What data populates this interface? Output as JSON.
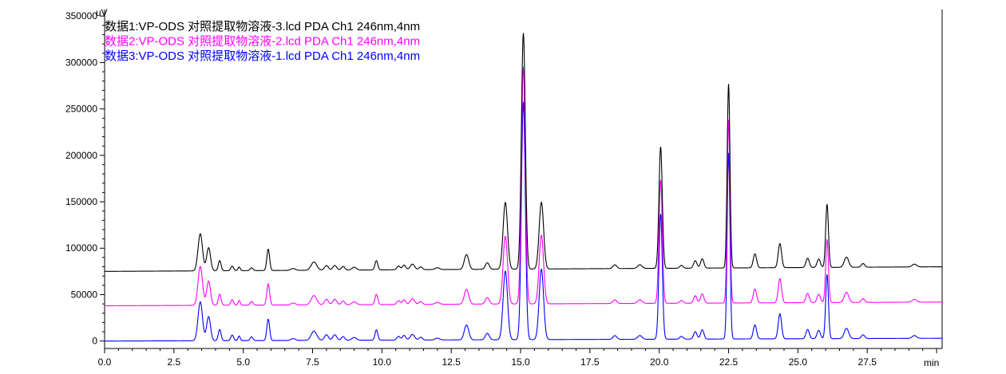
{
  "chart_data": {
    "type": "line",
    "ylabel": "uV",
    "xlabel": "min",
    "xlim": [
      0,
      30.2
    ],
    "ylim": [
      -8000,
      357000
    ],
    "x_ticks": [
      0.0,
      2.5,
      5.0,
      7.5,
      10.0,
      12.5,
      15.0,
      17.5,
      20.0,
      22.5,
      25.0,
      27.5
    ],
    "x_tick_labels": [
      "0.0",
      "2.5",
      "5.0",
      "7.5",
      "10.0",
      "12.5",
      "15.0",
      "17.5",
      "20.0",
      "22.5",
      "25.0",
      "27.5"
    ],
    "y_ticks": [
      0,
      50000,
      100000,
      150000,
      200000,
      250000,
      300000,
      350000
    ],
    "y_tick_labels": [
      "0",
      "50000",
      "100000",
      "150000",
      "200000",
      "250000",
      "300000",
      "350000"
    ],
    "legend_position": "top-left",
    "series": [
      {
        "name": "数据1:VP-ODS 对照提取物溶液-3.lcd PDA Ch1 246nm,4nm",
        "color": "#000000",
        "baseline_start": 75000,
        "baseline_end": 80000,
        "peaks": [
          {
            "t": 3.45,
            "h": 40000,
            "w": 0.08
          },
          {
            "t": 3.75,
            "h": 25000,
            "w": 0.07
          },
          {
            "t": 4.15,
            "h": 11000,
            "w": 0.05
          },
          {
            "t": 4.6,
            "h": 5000,
            "w": 0.05
          },
          {
            "t": 4.85,
            "h": 4000,
            "w": 0.04
          },
          {
            "t": 5.3,
            "h": 3000,
            "w": 0.05
          },
          {
            "t": 5.9,
            "h": 23000,
            "w": 0.05
          },
          {
            "t": 6.8,
            "h": 2000,
            "w": 0.08
          },
          {
            "t": 7.55,
            "h": 9000,
            "w": 0.1
          },
          {
            "t": 8.0,
            "h": 5000,
            "w": 0.07
          },
          {
            "t": 8.3,
            "h": 5000,
            "w": 0.07
          },
          {
            "t": 8.6,
            "h": 4000,
            "w": 0.06
          },
          {
            "t": 9.0,
            "h": 3000,
            "w": 0.08
          },
          {
            "t": 9.8,
            "h": 10000,
            "w": 0.05
          },
          {
            "t": 10.6,
            "h": 4000,
            "w": 0.06
          },
          {
            "t": 10.8,
            "h": 5000,
            "w": 0.06
          },
          {
            "t": 11.1,
            "h": 6000,
            "w": 0.08
          },
          {
            "t": 11.4,
            "h": 3000,
            "w": 0.06
          },
          {
            "t": 12.0,
            "h": 2000,
            "w": 0.08
          },
          {
            "t": 13.05,
            "h": 16000,
            "w": 0.08
          },
          {
            "t": 13.8,
            "h": 7000,
            "w": 0.07
          },
          {
            "t": 14.45,
            "h": 72000,
            "w": 0.08
          },
          {
            "t": 15.1,
            "h": 254000,
            "w": 0.07
          },
          {
            "t": 15.75,
            "h": 72000,
            "w": 0.08
          },
          {
            "t": 18.4,
            "h": 4000,
            "w": 0.07
          },
          {
            "t": 19.3,
            "h": 4000,
            "w": 0.08
          },
          {
            "t": 20.05,
            "h": 131000,
            "w": 0.06
          },
          {
            "t": 20.8,
            "h": 3000,
            "w": 0.06
          },
          {
            "t": 21.3,
            "h": 8000,
            "w": 0.06
          },
          {
            "t": 21.55,
            "h": 10000,
            "w": 0.06
          },
          {
            "t": 22.5,
            "h": 198000,
            "w": 0.05
          },
          {
            "t": 23.45,
            "h": 15000,
            "w": 0.06
          },
          {
            "t": 24.35,
            "h": 26000,
            "w": 0.06
          },
          {
            "t": 25.35,
            "h": 10000,
            "w": 0.06
          },
          {
            "t": 25.75,
            "h": 9000,
            "w": 0.06
          },
          {
            "t": 26.05,
            "h": 68000,
            "w": 0.05
          },
          {
            "t": 26.75,
            "h": 11000,
            "w": 0.08
          },
          {
            "t": 27.35,
            "h": 4000,
            "w": 0.06
          },
          {
            "t": 29.2,
            "h": 3000,
            "w": 0.08
          }
        ]
      },
      {
        "name": "数据2:VP-ODS 对照提取物溶液-2.lcd PDA Ch1 246nm,4nm",
        "color": "#ff00ff",
        "baseline_start": 38000,
        "baseline_end": 42000,
        "peaks": [
          {
            "t": 3.45,
            "h": 42000,
            "w": 0.08
          },
          {
            "t": 3.75,
            "h": 26000,
            "w": 0.07
          },
          {
            "t": 4.15,
            "h": 12000,
            "w": 0.05
          },
          {
            "t": 4.6,
            "h": 6000,
            "w": 0.05
          },
          {
            "t": 4.85,
            "h": 5000,
            "w": 0.04
          },
          {
            "t": 5.3,
            "h": 4000,
            "w": 0.05
          },
          {
            "t": 5.9,
            "h": 23000,
            "w": 0.05
          },
          {
            "t": 6.8,
            "h": 2000,
            "w": 0.08
          },
          {
            "t": 7.55,
            "h": 10000,
            "w": 0.1
          },
          {
            "t": 8.0,
            "h": 6000,
            "w": 0.07
          },
          {
            "t": 8.3,
            "h": 6000,
            "w": 0.07
          },
          {
            "t": 8.6,
            "h": 4000,
            "w": 0.06
          },
          {
            "t": 9.0,
            "h": 3000,
            "w": 0.08
          },
          {
            "t": 9.8,
            "h": 11000,
            "w": 0.05
          },
          {
            "t": 10.6,
            "h": 4000,
            "w": 0.06
          },
          {
            "t": 10.8,
            "h": 5000,
            "w": 0.06
          },
          {
            "t": 11.1,
            "h": 6000,
            "w": 0.08
          },
          {
            "t": 11.4,
            "h": 3000,
            "w": 0.06
          },
          {
            "t": 12.0,
            "h": 2000,
            "w": 0.08
          },
          {
            "t": 13.05,
            "h": 16000,
            "w": 0.08
          },
          {
            "t": 13.8,
            "h": 7000,
            "w": 0.07
          },
          {
            "t": 14.45,
            "h": 73000,
            "w": 0.08
          },
          {
            "t": 15.1,
            "h": 255000,
            "w": 0.07
          },
          {
            "t": 15.75,
            "h": 74000,
            "w": 0.08
          },
          {
            "t": 18.4,
            "h": 4000,
            "w": 0.07
          },
          {
            "t": 19.3,
            "h": 4000,
            "w": 0.08
          },
          {
            "t": 20.05,
            "h": 133000,
            "w": 0.06
          },
          {
            "t": 20.8,
            "h": 3000,
            "w": 0.06
          },
          {
            "t": 21.3,
            "h": 8000,
            "w": 0.06
          },
          {
            "t": 21.55,
            "h": 10000,
            "w": 0.06
          },
          {
            "t": 22.5,
            "h": 197000,
            "w": 0.05
          },
          {
            "t": 23.45,
            "h": 15000,
            "w": 0.06
          },
          {
            "t": 24.35,
            "h": 26000,
            "w": 0.06
          },
          {
            "t": 25.35,
            "h": 10000,
            "w": 0.06
          },
          {
            "t": 25.75,
            "h": 9000,
            "w": 0.06
          },
          {
            "t": 26.05,
            "h": 68000,
            "w": 0.05
          },
          {
            "t": 26.75,
            "h": 11000,
            "w": 0.08
          },
          {
            "t": 27.35,
            "h": 4000,
            "w": 0.06
          },
          {
            "t": 29.2,
            "h": 3000,
            "w": 0.08
          }
        ]
      },
      {
        "name": "数据3:VP-ODS 对照提取物溶液-1.lcd PDA Ch1 246nm,4nm",
        "color": "#0000ff",
        "baseline_start": 0,
        "baseline_end": 3000,
        "peaks": [
          {
            "t": 3.45,
            "h": 42000,
            "w": 0.08
          },
          {
            "t": 3.75,
            "h": 26000,
            "w": 0.07
          },
          {
            "t": 4.15,
            "h": 12000,
            "w": 0.05
          },
          {
            "t": 4.6,
            "h": 6000,
            "w": 0.05
          },
          {
            "t": 4.85,
            "h": 5000,
            "w": 0.04
          },
          {
            "t": 5.3,
            "h": 4000,
            "w": 0.05
          },
          {
            "t": 5.9,
            "h": 23000,
            "w": 0.05
          },
          {
            "t": 6.8,
            "h": 2000,
            "w": 0.08
          },
          {
            "t": 7.55,
            "h": 10000,
            "w": 0.1
          },
          {
            "t": 8.0,
            "h": 6000,
            "w": 0.07
          },
          {
            "t": 8.3,
            "h": 6000,
            "w": 0.07
          },
          {
            "t": 8.6,
            "h": 4000,
            "w": 0.06
          },
          {
            "t": 9.0,
            "h": 3000,
            "w": 0.08
          },
          {
            "t": 9.8,
            "h": 11000,
            "w": 0.05
          },
          {
            "t": 10.6,
            "h": 4000,
            "w": 0.06
          },
          {
            "t": 10.8,
            "h": 5000,
            "w": 0.06
          },
          {
            "t": 11.1,
            "h": 6000,
            "w": 0.08
          },
          {
            "t": 11.4,
            "h": 3000,
            "w": 0.06
          },
          {
            "t": 12.0,
            "h": 2000,
            "w": 0.08
          },
          {
            "t": 13.05,
            "h": 16000,
            "w": 0.08
          },
          {
            "t": 13.8,
            "h": 7000,
            "w": 0.07
          },
          {
            "t": 14.45,
            "h": 74000,
            "w": 0.08
          },
          {
            "t": 15.1,
            "h": 256000,
            "w": 0.07
          },
          {
            "t": 15.75,
            "h": 76000,
            "w": 0.08
          },
          {
            "t": 18.4,
            "h": 4000,
            "w": 0.07
          },
          {
            "t": 19.3,
            "h": 4000,
            "w": 0.08
          },
          {
            "t": 20.05,
            "h": 135000,
            "w": 0.06
          },
          {
            "t": 20.8,
            "h": 3000,
            "w": 0.06
          },
          {
            "t": 21.3,
            "h": 8000,
            "w": 0.06
          },
          {
            "t": 21.55,
            "h": 10000,
            "w": 0.06
          },
          {
            "t": 22.5,
            "h": 200000,
            "w": 0.05
          },
          {
            "t": 23.45,
            "h": 15000,
            "w": 0.06
          },
          {
            "t": 24.35,
            "h": 27000,
            "w": 0.06
          },
          {
            "t": 25.35,
            "h": 10000,
            "w": 0.06
          },
          {
            "t": 25.75,
            "h": 9000,
            "w": 0.06
          },
          {
            "t": 26.05,
            "h": 69000,
            "w": 0.05
          },
          {
            "t": 26.75,
            "h": 11000,
            "w": 0.08
          },
          {
            "t": 27.35,
            "h": 4000,
            "w": 0.06
          },
          {
            "t": 29.2,
            "h": 3000,
            "w": 0.08
          }
        ]
      }
    ]
  }
}
